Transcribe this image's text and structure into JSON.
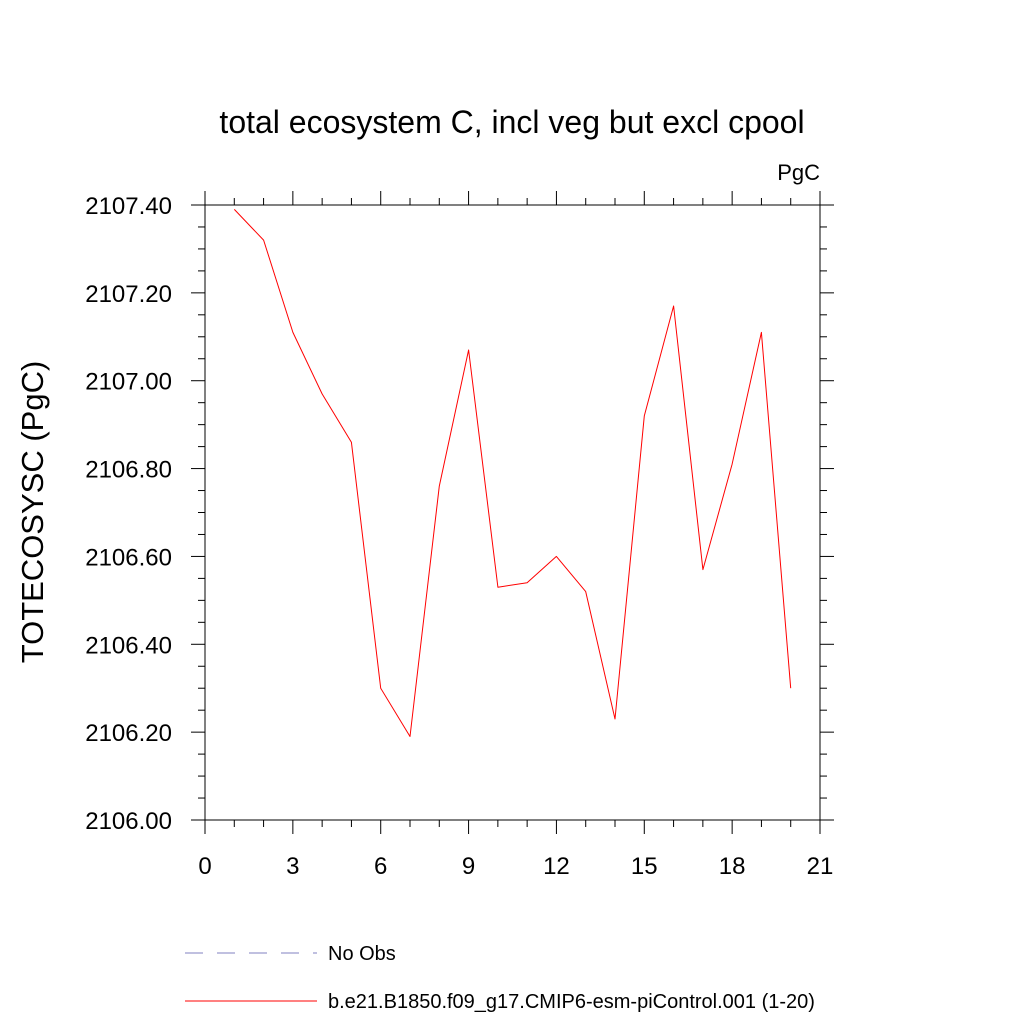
{
  "chart_data": {
    "type": "line",
    "title": "total ecosystem C, incl veg but excl cpool",
    "units_label": "PgC",
    "ylabel": "TOTECOSYSC  (PgC)",
    "xlabel": "",
    "xlim": [
      0,
      21
    ],
    "ylim": [
      2106.0,
      2107.4
    ],
    "x_ticks": [
      0,
      3,
      6,
      9,
      12,
      15,
      18,
      21
    ],
    "x_tick_labels": [
      "0",
      "3",
      "6",
      "9",
      "12",
      "15",
      "18",
      "21"
    ],
    "y_ticks": [
      2106.0,
      2106.2,
      2106.4,
      2106.6,
      2106.8,
      2107.0,
      2107.2,
      2107.4
    ],
    "y_tick_labels": [
      "2106.00",
      "2106.20",
      "2106.40",
      "2106.60",
      "2106.80",
      "2107.00",
      "2107.20",
      "2107.40"
    ],
    "x_minor_step": 1,
    "y_minor_step": 0.05,
    "grid": false,
    "legend_position": "bottom",
    "series": [
      {
        "name": "b.e21.B1850.f09_g17.CMIP6-esm-piControl.001 (1-20)",
        "color": "#ff0000",
        "dash": "solid",
        "x": [
          1,
          2,
          3,
          4,
          5,
          6,
          7,
          8,
          9,
          10,
          11,
          12,
          13,
          14,
          15,
          16,
          17,
          18,
          19,
          20
        ],
        "values": [
          2107.39,
          2107.32,
          2107.11,
          2106.97,
          2106.86,
          2106.3,
          2106.19,
          2106.76,
          2107.07,
          2106.53,
          2106.54,
          2106.6,
          2106.52,
          2106.23,
          2106.92,
          2107.17,
          2106.57,
          2106.81,
          2107.11,
          2106.3
        ]
      }
    ],
    "legend": [
      {
        "label": "No Obs",
        "color": "#8080c0",
        "dash": "dashed"
      },
      {
        "label": "b.e21.B1850.f09_g17.CMIP6-esm-piControl.001 (1-20)",
        "color": "#ff0000",
        "dash": "solid"
      }
    ]
  }
}
